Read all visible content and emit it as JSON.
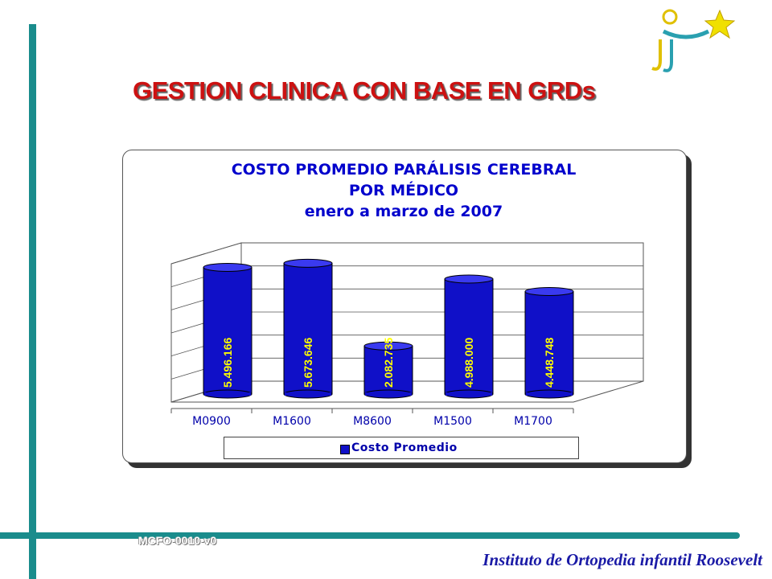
{
  "slide": {
    "title": "GESTION CLINICA  CON BASE EN GRDs",
    "code": "MCFO-0010-v0",
    "institute": "Instituto de Ortopedia infantil Roosevelt"
  },
  "colors": {
    "accent_bar": "#1a8c8c",
    "title": "#cc1111",
    "bars": "#1010c8",
    "value_labels": "#ffff00",
    "chart_text": "#0000cc"
  },
  "chart_data": {
    "type": "bar",
    "title_lines": [
      "COSTO PROMEDIO PARÁLISIS CEREBRAL",
      "POR MÉDICO",
      "enero a marzo de 2007"
    ],
    "categories": [
      "M0900",
      "M1600",
      "M8600",
      "M1500",
      "M1700"
    ],
    "series": [
      {
        "name": "Costo Promedio",
        "values": [
          5496166,
          5673646,
          2082735,
          4988000,
          4448748
        ],
        "labels": [
          "5.496.166",
          "5.673.646",
          "2.082.735",
          "4.988.000",
          "4.448.748"
        ]
      }
    ],
    "ylim": [
      0,
      6000000
    ],
    "grid": true,
    "legend": "bottom",
    "three_d": true
  }
}
